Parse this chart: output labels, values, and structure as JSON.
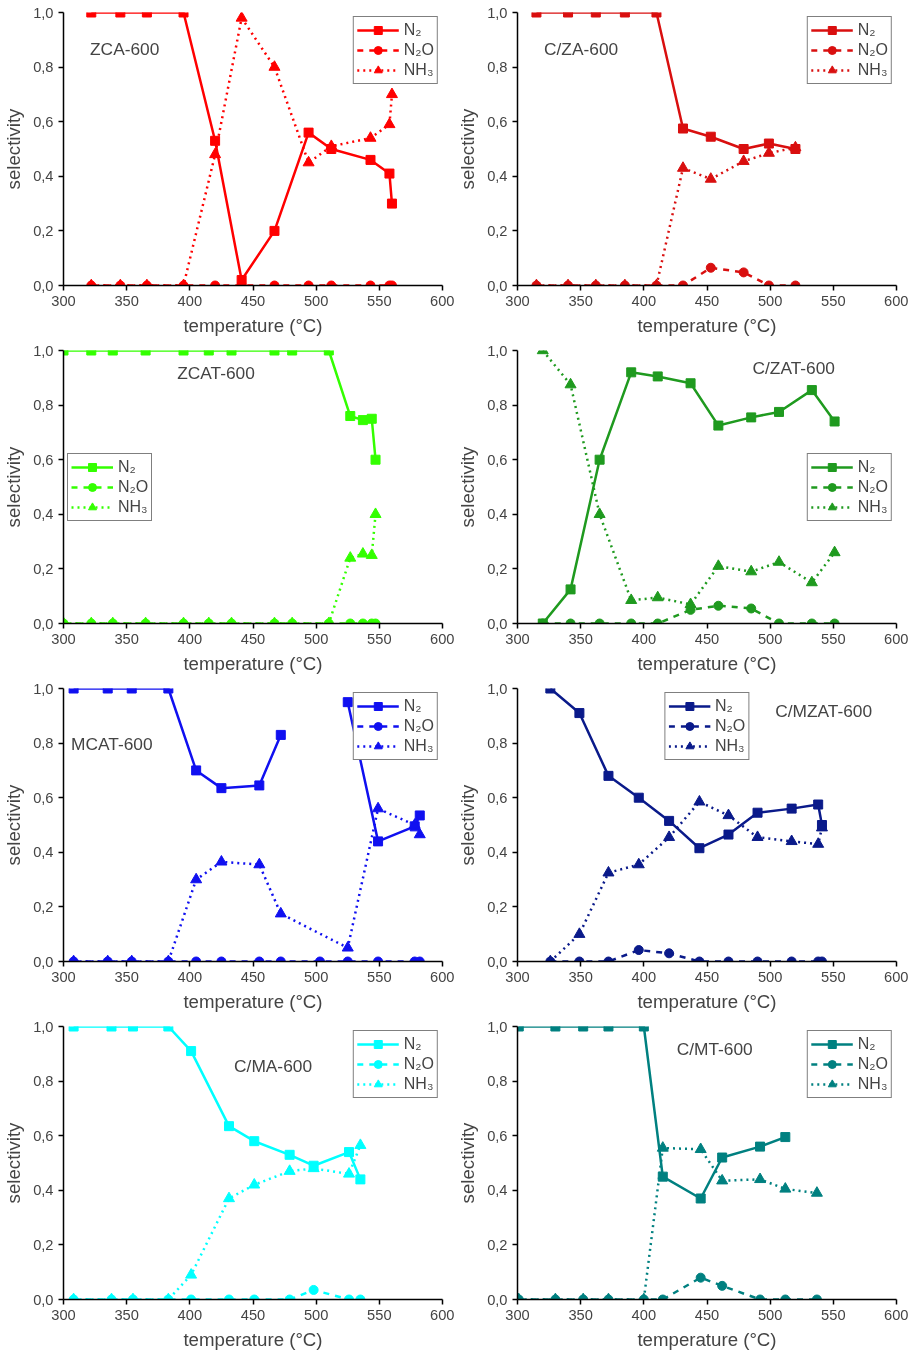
{
  "chart_data": [
    {
      "type": "line",
      "annotations": [
        "ZCA-600"
      ],
      "xlabel": "temperature (°C)",
      "ylabel": "selectivity",
      "xlim": [
        300,
        600
      ],
      "ylim": [
        0,
        1
      ],
      "xticks": [
        300,
        350,
        400,
        450,
        500,
        550,
        600
      ],
      "yticks": [
        {
          "value": 0,
          "label": "0,0"
        },
        {
          "value": 0.2,
          "label": "0,2"
        },
        {
          "value": 0.4,
          "label": "0,4"
        },
        {
          "value": 0.6,
          "label": "0,6"
        },
        {
          "value": 0.8,
          "label": "0,8"
        },
        {
          "value": 1,
          "label": "1,0"
        }
      ],
      "legend": "top right",
      "series": [
        {
          "name": "N₂",
          "color": "#ff0000",
          "marker": "square",
          "line_style": "solid",
          "x": [
            322,
            345,
            366,
            395,
            420,
            441,
            467,
            494,
            512,
            543,
            558,
            560
          ],
          "values": [
            1,
            1,
            1,
            1,
            0.53,
            0.02,
            0.2,
            0.56,
            0.5,
            0.46,
            0.41,
            0.3
          ]
        },
        {
          "name": "N₂O",
          "color": "#ff0000",
          "marker": "circle",
          "line_style": "dashed",
          "x": [
            322,
            345,
            366,
            395,
            420,
            441,
            467,
            494,
            512,
            543,
            558,
            560
          ],
          "values": [
            0,
            0,
            0,
            0,
            0,
            0,
            0,
            0,
            0,
            0,
            0,
            0
          ]
        },
        {
          "name": "NH₃",
          "color": "#ff0000",
          "marker": "triangle",
          "line_style": "dotted",
          "x": [
            322,
            345,
            366,
            395,
            420,
            441,
            467,
            494,
            512,
            543,
            558,
            560
          ],
          "values": [
            0,
            0,
            0,
            0,
            0.48,
            0.98,
            0.8,
            0.45,
            0.51,
            0.54,
            0.59,
            0.7
          ]
        }
      ]
    },
    {
      "type": "line",
      "annotations": [
        "C/ZA-600"
      ],
      "xlabel": "temperature (°C)",
      "ylabel": "selectivity",
      "xlim": [
        300,
        600
      ],
      "ylim": [
        0,
        1
      ],
      "xticks": [
        300,
        350,
        400,
        450,
        500,
        550,
        600
      ],
      "yticks": [
        {
          "value": 0,
          "label": "0,0"
        },
        {
          "value": 0.2,
          "label": "0,2"
        },
        {
          "value": 0.4,
          "label": "0,4"
        },
        {
          "value": 0.6,
          "label": "0,6"
        },
        {
          "value": 0.8,
          "label": "0,8"
        },
        {
          "value": 1,
          "label": "1,0"
        }
      ],
      "legend": "top right",
      "series": [
        {
          "name": "N₂",
          "color": "#d90f0f",
          "marker": "square",
          "line_style": "solid",
          "x": [
            315,
            340,
            362,
            385,
            410,
            431,
            453,
            479,
            499,
            520
          ],
          "values": [
            1,
            1,
            1,
            1,
            1,
            0.575,
            0.545,
            0.5,
            0.52,
            0.5
          ]
        },
        {
          "name": "N₂O",
          "color": "#d90f0f",
          "marker": "circle",
          "line_style": "dashed",
          "x": [
            315,
            340,
            362,
            385,
            410,
            431,
            453,
            479,
            499,
            520
          ],
          "values": [
            0,
            0,
            0,
            0,
            0,
            0,
            0.065,
            0.048,
            0,
            0
          ]
        },
        {
          "name": "NH₃",
          "color": "#d90f0f",
          "marker": "triangle",
          "line_style": "dotted",
          "x": [
            315,
            340,
            362,
            385,
            410,
            431,
            453,
            479,
            499,
            520
          ],
          "values": [
            0,
            0,
            0,
            0,
            0,
            0.43,
            0.39,
            0.455,
            0.485,
            0.505
          ]
        }
      ]
    },
    {
      "type": "line",
      "annotations": [
        "ZCAT-600"
      ],
      "xlabel": "temperature (°C)",
      "ylabel": "selectivity",
      "xlim": [
        300,
        600
      ],
      "ylim": [
        0,
        1
      ],
      "xticks": [
        300,
        350,
        400,
        450,
        500,
        550,
        600
      ],
      "yticks": [
        {
          "value": 0,
          "label": "0,0"
        },
        {
          "value": 0.2,
          "label": "0,2"
        },
        {
          "value": 0.4,
          "label": "0,4"
        },
        {
          "value": 0.6,
          "label": "0,6"
        },
        {
          "value": 0.8,
          "label": "0,8"
        },
        {
          "value": 1,
          "label": "1,0"
        }
      ],
      "legend": "left",
      "series": [
        {
          "name": "N₂",
          "color": "#33ff00",
          "marker": "square",
          "line_style": "solid",
          "x": [
            300,
            322,
            339,
            365,
            395,
            415,
            433,
            467,
            481,
            510,
            527,
            537,
            544,
            547
          ],
          "values": [
            1,
            1,
            1,
            1,
            1,
            1,
            1,
            1,
            1,
            1,
            0.76,
            0.745,
            0.75,
            0.6
          ]
        },
        {
          "name": "N₂O",
          "color": "#33ff00",
          "marker": "circle",
          "line_style": "dashed",
          "x": [
            300,
            322,
            339,
            365,
            395,
            415,
            433,
            467,
            481,
            510,
            527,
            537,
            544,
            547
          ],
          "values": [
            0,
            0,
            0,
            0,
            0,
            0,
            0,
            0,
            0,
            0,
            0,
            0,
            0,
            0
          ]
        },
        {
          "name": "NH₃",
          "color": "#33ff00",
          "marker": "triangle",
          "line_style": "dotted",
          "x": [
            300,
            322,
            339,
            365,
            395,
            415,
            433,
            467,
            481,
            510,
            527,
            537,
            544,
            547
          ],
          "values": [
            0,
            0,
            0,
            0,
            0,
            0,
            0,
            0,
            0,
            0,
            0.24,
            0.255,
            0.25,
            0.4
          ]
        }
      ]
    },
    {
      "type": "line",
      "annotations": [
        "C/ZAT-600"
      ],
      "xlabel": "temperature (°C)",
      "ylabel": "selectivity",
      "xlim": [
        300,
        600
      ],
      "ylim": [
        0,
        1
      ],
      "xticks": [
        300,
        350,
        400,
        450,
        500,
        550,
        600
      ],
      "yticks": [
        {
          "value": 0,
          "label": "0,0"
        },
        {
          "value": 0.2,
          "label": "0,2"
        },
        {
          "value": 0.4,
          "label": "0,4"
        },
        {
          "value": 0.6,
          "label": "0,6"
        },
        {
          "value": 0.8,
          "label": "0,8"
        },
        {
          "value": 1,
          "label": "1,0"
        }
      ],
      "legend": "right",
      "series": [
        {
          "name": "N₂",
          "color": "#1f9a1f",
          "marker": "square",
          "line_style": "solid",
          "x": [
            320,
            342,
            365,
            390,
            411,
            437,
            459,
            485,
            507,
            533,
            551
          ],
          "values": [
            0,
            0.125,
            0.6,
            0.92,
            0.905,
            0.88,
            0.725,
            0.755,
            0.775,
            0.855,
            0.74
          ]
        },
        {
          "name": "N₂O",
          "color": "#1f9a1f",
          "marker": "circle",
          "line_style": "dashed",
          "x": [
            320,
            342,
            365,
            390,
            411,
            437,
            459,
            485,
            507,
            533,
            551
          ],
          "values": [
            0,
            0,
            0,
            0,
            0,
            0.05,
            0.065,
            0.055,
            0,
            0,
            0
          ]
        },
        {
          "name": "NH₃",
          "color": "#1f9a1f",
          "marker": "triangle",
          "line_style": "dotted",
          "x": [
            320,
            342,
            365,
            390,
            411,
            437,
            459,
            485,
            507,
            533,
            551
          ],
          "values": [
            1,
            0.875,
            0.4,
            0.085,
            0.095,
            0.07,
            0.21,
            0.19,
            0.225,
            0.15,
            0.26
          ]
        }
      ]
    },
    {
      "type": "line",
      "annotations": [
        "MCAT-600"
      ],
      "xlabel": "temperature (°C)",
      "ylabel": "selectivity",
      "xlim": [
        300,
        600
      ],
      "ylim": [
        0,
        1
      ],
      "xticks": [
        300,
        350,
        400,
        450,
        500,
        550,
        600
      ],
      "yticks": [
        {
          "value": 0,
          "label": "0,0"
        },
        {
          "value": 0.2,
          "label": "0,2"
        },
        {
          "value": 0.4,
          "label": "0,4"
        },
        {
          "value": 0.6,
          "label": "0,6"
        },
        {
          "value": 0.8,
          "label": "0,8"
        },
        {
          "value": 1,
          "label": "1,0"
        }
      ],
      "legend": "top right",
      "series": [
        {
          "name": "N₂",
          "color": "#1010f0",
          "marker": "square",
          "line_style": "solid",
          "x": [
            308,
            335,
            354,
            383,
            405,
            425,
            455,
            472,
            503,
            525,
            549,
            578,
            582
          ],
          "values": [
            1,
            1,
            1,
            1,
            0.7,
            0.635,
            0.645,
            0.83,
            null,
            0.95,
            0.44,
            0.495,
            0.535
          ]
        },
        {
          "name": "N₂O",
          "color": "#1010f0",
          "marker": "circle",
          "line_style": "dashed",
          "x": [
            308,
            335,
            354,
            383,
            405,
            425,
            455,
            472,
            503,
            525,
            549,
            578,
            582
          ],
          "values": [
            0,
            0,
            0,
            0,
            0,
            0,
            0,
            0,
            0,
            0,
            0,
            0,
            0
          ]
        },
        {
          "name": "NH₃",
          "color": "#1010f0",
          "marker": "triangle",
          "line_style": "dotted",
          "x": [
            308,
            335,
            354,
            383,
            405,
            425,
            455,
            472,
            525,
            549,
            578,
            582
          ],
          "values": [
            0,
            0,
            0,
            0,
            0.3,
            0.365,
            0.355,
            0.175,
            0.05,
            0.56,
            0.5,
            0.465
          ]
        }
      ]
    },
    {
      "type": "line",
      "annotations": [
        "C/MZAT-600"
      ],
      "xlabel": "temperature (°C)",
      "ylabel": "selectivity",
      "xlim": [
        300,
        600
      ],
      "ylim": [
        0,
        1
      ],
      "xticks": [
        300,
        350,
        400,
        450,
        500,
        550,
        600
      ],
      "yticks": [
        {
          "value": 0,
          "label": "0,0"
        },
        {
          "value": 0.2,
          "label": "0,2"
        },
        {
          "value": 0.4,
          "label": "0,4"
        },
        {
          "value": 0.6,
          "label": "0,6"
        },
        {
          "value": 0.8,
          "label": "0,8"
        },
        {
          "value": 1,
          "label": "1,0"
        }
      ],
      "legend": "top",
      "series": [
        {
          "name": "N₂",
          "color": "#0a1a8a",
          "marker": "square",
          "line_style": "solid",
          "x": [
            326,
            349,
            372,
            396,
            420,
            444,
            467,
            490,
            517,
            538,
            541
          ],
          "values": [
            1,
            0.91,
            0.68,
            0.6,
            0.515,
            0.415,
            0.465,
            0.545,
            0.56,
            0.575,
            0.5
          ]
        },
        {
          "name": "N₂O",
          "color": "#0a1a8a",
          "marker": "circle",
          "line_style": "dashed",
          "x": [
            326,
            349,
            372,
            396,
            420,
            444,
            467,
            490,
            517,
            538,
            541
          ],
          "values": [
            0,
            0,
            0,
            0.042,
            0.03,
            0,
            0,
            0,
            0,
            0,
            0
          ]
        },
        {
          "name": "NH₃",
          "color": "#0a1a8a",
          "marker": "triangle",
          "line_style": "dotted",
          "x": [
            326,
            349,
            372,
            396,
            420,
            444,
            467,
            490,
            517,
            538,
            541
          ],
          "values": [
            0,
            0.1,
            0.325,
            0.355,
            0.455,
            0.585,
            0.535,
            0.455,
            0.44,
            0.43,
            0.49
          ]
        }
      ]
    },
    {
      "type": "line",
      "annotations": [
        "C/MA-600"
      ],
      "xlabel": "temperature (°C)",
      "ylabel": "selectivity",
      "xlim": [
        300,
        600
      ],
      "ylim": [
        0,
        1
      ],
      "xticks": [
        300,
        350,
        400,
        450,
        500,
        550,
        600
      ],
      "yticks": [
        {
          "value": 0,
          "label": "0,0"
        },
        {
          "value": 0.2,
          "label": "0,2"
        },
        {
          "value": 0.4,
          "label": "0,4"
        },
        {
          "value": 0.6,
          "label": "0,6"
        },
        {
          "value": 0.8,
          "label": "0,8"
        },
        {
          "value": 1,
          "label": "1,0"
        }
      ],
      "legend": "top right",
      "series": [
        {
          "name": "N₂",
          "color": "#00ffff",
          "marker": "square",
          "line_style": "solid",
          "x": [
            308,
            338,
            355,
            383,
            401,
            431,
            451,
            479,
            498,
            526,
            535
          ],
          "values": [
            1,
            1,
            1,
            1,
            0.91,
            0.635,
            0.58,
            0.53,
            0.49,
            0.54,
            0.44
          ]
        },
        {
          "name": "N₂O",
          "color": "#00ffff",
          "marker": "circle",
          "line_style": "dashed",
          "x": [
            308,
            338,
            355,
            383,
            401,
            431,
            451,
            479,
            498,
            526,
            535
          ],
          "values": [
            0,
            0,
            0,
            0,
            0,
            0,
            0,
            0,
            0.035,
            0,
            0
          ]
        },
        {
          "name": "NH₃",
          "color": "#00ffff",
          "marker": "triangle",
          "line_style": "dotted",
          "x": [
            308,
            338,
            355,
            383,
            401,
            431,
            451,
            479,
            498,
            526,
            535
          ],
          "values": [
            0,
            0,
            0,
            0,
            0.09,
            0.37,
            0.42,
            0.47,
            0.48,
            0.46,
            0.565
          ]
        }
      ]
    },
    {
      "type": "line",
      "annotations": [
        "C/MT-600"
      ],
      "xlabel": "temperature (°C)",
      "ylabel": "selectivity",
      "xlim": [
        300,
        600
      ],
      "ylim": [
        0,
        1
      ],
      "xticks": [
        300,
        350,
        400,
        450,
        500,
        550,
        600
      ],
      "yticks": [
        {
          "value": 0,
          "label": "0,0"
        },
        {
          "value": 0.2,
          "label": "0,2"
        },
        {
          "value": 0.4,
          "label": "0,4"
        },
        {
          "value": 0.6,
          "label": "0,6"
        },
        {
          "value": 0.8,
          "label": "0,8"
        },
        {
          "value": 1,
          "label": "1,0"
        }
      ],
      "legend": "top right",
      "series": [
        {
          "name": "N₂",
          "color": "#008080",
          "marker": "square",
          "line_style": "solid",
          "x": [
            301,
            330,
            352,
            372,
            400,
            415,
            445,
            462,
            492,
            512
          ],
          "values": [
            1,
            1,
            1,
            1,
            1,
            0.45,
            0.37,
            0.52,
            0.56,
            0.595
          ]
        },
        {
          "name": "N₂O",
          "color": "#008080",
          "marker": "circle",
          "line_style": "dashed",
          "x": [
            301,
            330,
            352,
            372,
            400,
            415,
            445,
            462,
            492,
            512,
            537
          ],
          "values": [
            0,
            0,
            0,
            0,
            0,
            0,
            0.08,
            0.05,
            0,
            0,
            0
          ]
        },
        {
          "name": "NH₃",
          "color": "#008080",
          "marker": "triangle",
          "line_style": "dotted",
          "x": [
            301,
            330,
            352,
            372,
            400,
            415,
            445,
            462,
            492,
            512,
            537
          ],
          "values": [
            0,
            0,
            0,
            0,
            0,
            0.555,
            0.55,
            0.435,
            0.44,
            0.405,
            0.39
          ]
        }
      ]
    }
  ]
}
